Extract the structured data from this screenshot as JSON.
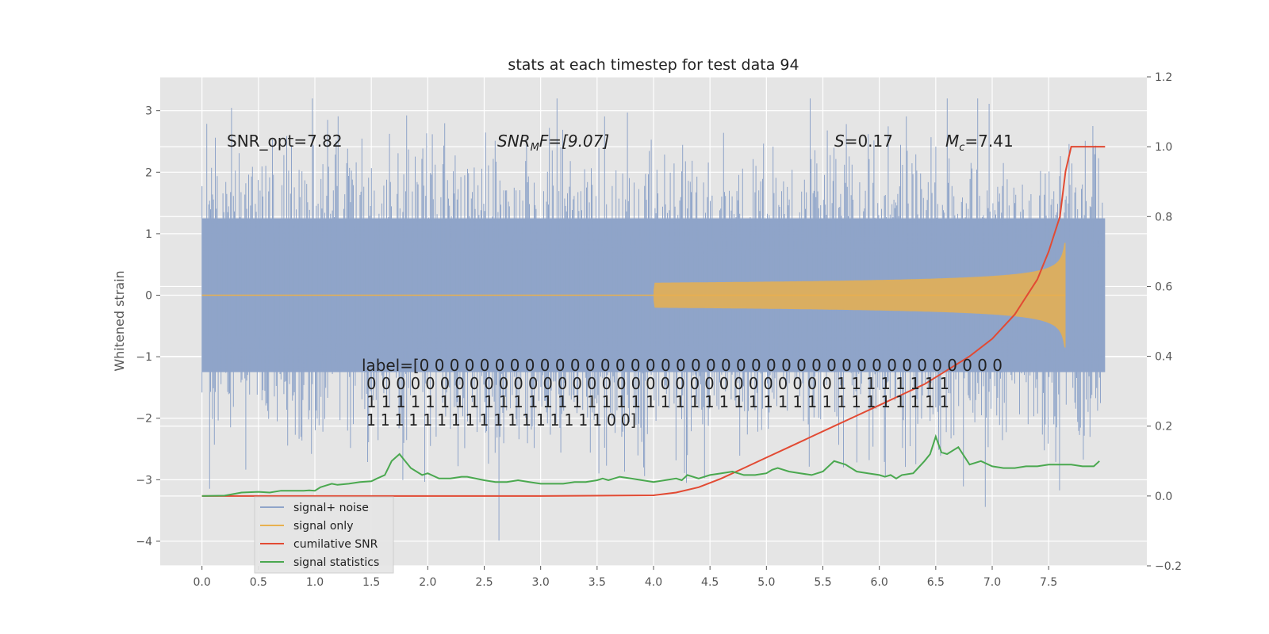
{
  "chart_data": {
    "type": "line",
    "title": "stats at each timestep for test data 94",
    "ylabel": "Whitened strain",
    "xlim": [
      -0.37,
      8.37
    ],
    "ylim": [
      -4.4,
      3.55
    ],
    "y2lim": [
      -0.2,
      1.2
    ],
    "x_ticks": [
      "0.0",
      "0.5",
      "1.0",
      "1.5",
      "2.0",
      "2.5",
      "3.0",
      "3.5",
      "4.0",
      "4.5",
      "5.0",
      "5.5",
      "6.0",
      "6.5",
      "7.0",
      "7.5"
    ],
    "x_tick_values": [
      0.0,
      0.5,
      1.0,
      1.5,
      2.0,
      2.5,
      3.0,
      3.5,
      4.0,
      4.5,
      5.0,
      5.5,
      6.0,
      6.5,
      7.0,
      7.5
    ],
    "y_ticks": [
      "3",
      "2",
      "1",
      "0",
      "−1",
      "−2",
      "−3",
      "−4"
    ],
    "y_tick_values": [
      3,
      2,
      1,
      0,
      -1,
      -2,
      -3,
      -4
    ],
    "y2_ticks": [
      "1.2",
      "1.0",
      "0.8",
      "0.6",
      "0.4",
      "0.2",
      "0.0",
      "−0.2"
    ],
    "y2_tick_values": [
      1.2,
      1.0,
      0.8,
      0.6,
      0.4,
      0.2,
      0.0,
      -0.2
    ],
    "grid": true,
    "legend_position": "lower-left",
    "colors": {
      "noise": "#8fa4c9",
      "signal": "#e8b04f",
      "cumulative": "#e24a33",
      "statistics": "#4aa84f",
      "axes_bg": "#e5e5e5",
      "grid": "#ffffff"
    },
    "annotations": {
      "snr_opt": "SNR_opt=7.82",
      "snr_mf_label": "SNR",
      "snr_mf_sub": "M",
      "snr_mf_rest": "F=[9.07]",
      "s_label": "S",
      "s_value": "=0.17",
      "mc_label": "M",
      "mc_sub": "c",
      "mc_value": "=7.41",
      "label_lines": [
        "label=[0 0 0 0 0 0 0 0 0 0 0 0 0 0 0 0 0 0 0 0 0 0 0 0 0 0 0 0 0 0 0 0 0 0 0 0 0 0 0",
        " 0 0 0 0 0 0 0 0 0 0 0 0 0 0 0 0 0 0 0 0 0 0 0 0 0 0 0 0 0 0 0 0 1 1 1 1 1 1 1 1",
        " 1 1 1 1 1 1 1 1 1 1 1 1 1 1 1 1 1 1 1 1 1 1 1 1 1 1 1 1 1 1 1 1 1 1 1 1 1 1 1 1",
        " 1 1 1 1 1 1 1 1 1 1 1 1 1 1 1 1 1 0 0]"
      ]
    },
    "series": [
      {
        "name": "signal+ noise",
        "axis": "left",
        "x_range": [
          0.0,
          8.0
        ],
        "envelope_1sigma": 1.0,
        "peak_max": 3.2,
        "peak_min": -4.0
      },
      {
        "name": "signal only",
        "axis": "left",
        "x_range": [
          0.0,
          7.65
        ],
        "end_amplitude": 0.85
      },
      {
        "name": "cumilative SNR",
        "axis": "right",
        "x": [
          0,
          1,
          2,
          3,
          4.0,
          4.2,
          4.4,
          4.6,
          4.8,
          5.0,
          5.2,
          5.4,
          5.6,
          5.8,
          6.0,
          6.2,
          6.4,
          6.6,
          6.8,
          7.0,
          7.2,
          7.4,
          7.5,
          7.6,
          7.65,
          7.7,
          8.0
        ],
        "y": [
          0.0,
          0.0,
          0.0,
          0.0,
          0.002,
          0.01,
          0.025,
          0.05,
          0.08,
          0.11,
          0.14,
          0.17,
          0.2,
          0.23,
          0.26,
          0.29,
          0.32,
          0.36,
          0.4,
          0.45,
          0.52,
          0.62,
          0.7,
          0.8,
          0.93,
          1.0,
          1.0
        ]
      },
      {
        "name": "signal statistics",
        "axis": "right",
        "x": [
          0.0,
          0.2,
          0.35,
          0.5,
          0.6,
          0.7,
          0.8,
          0.9,
          0.95,
          1.0,
          1.05,
          1.1,
          1.15,
          1.2,
          1.3,
          1.4,
          1.5,
          1.55,
          1.62,
          1.68,
          1.75,
          1.85,
          1.95,
          2.0,
          2.1,
          2.2,
          2.3,
          2.35,
          2.5,
          2.6,
          2.7,
          2.8,
          2.9,
          3.0,
          3.1,
          3.2,
          3.3,
          3.4,
          3.5,
          3.55,
          3.6,
          3.7,
          3.8,
          3.9,
          4.0,
          4.1,
          4.2,
          4.25,
          4.3,
          4.4,
          4.5,
          4.6,
          4.7,
          4.8,
          4.9,
          5.0,
          5.05,
          5.1,
          5.2,
          5.3,
          5.4,
          5.5,
          5.6,
          5.7,
          5.8,
          5.9,
          6.0,
          6.05,
          6.1,
          6.15,
          6.2,
          6.3,
          6.4,
          6.45,
          6.5,
          6.55,
          6.6,
          6.7,
          6.8,
          6.9,
          7.0,
          7.1,
          7.2,
          7.3,
          7.4,
          7.5,
          7.6,
          7.7,
          7.8,
          7.9,
          7.95
        ],
        "y": [
          0.0,
          0.001,
          0.01,
          0.012,
          0.01,
          0.015,
          0.015,
          0.015,
          0.016,
          0.015,
          0.025,
          0.03,
          0.035,
          0.032,
          0.035,
          0.04,
          0.042,
          0.05,
          0.06,
          0.1,
          0.12,
          0.08,
          0.06,
          0.065,
          0.05,
          0.05,
          0.055,
          0.055,
          0.045,
          0.04,
          0.04,
          0.045,
          0.04,
          0.035,
          0.035,
          0.035,
          0.04,
          0.04,
          0.045,
          0.05,
          0.045,
          0.055,
          0.05,
          0.045,
          0.04,
          0.045,
          0.05,
          0.045,
          0.06,
          0.05,
          0.06,
          0.065,
          0.07,
          0.06,
          0.06,
          0.065,
          0.075,
          0.08,
          0.07,
          0.065,
          0.06,
          0.07,
          0.1,
          0.09,
          0.07,
          0.065,
          0.06,
          0.055,
          0.06,
          0.05,
          0.06,
          0.065,
          0.1,
          0.12,
          0.17,
          0.125,
          0.12,
          0.14,
          0.09,
          0.1,
          0.085,
          0.08,
          0.08,
          0.085,
          0.085,
          0.09,
          0.09,
          0.09,
          0.085,
          0.085,
          0.1
        ]
      }
    ]
  }
}
